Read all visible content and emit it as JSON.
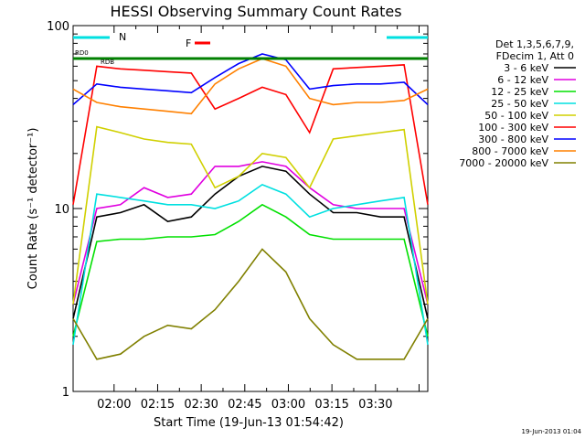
{
  "chart_data": {
    "type": "line",
    "title": "HESSI Observing Summary Count Rates",
    "xlabel": "Start Time (19-Jun-13 01:54:42)",
    "ylabel": "Count Rate (s⁻¹ detector⁻¹)",
    "yscale": "log",
    "ylim": [
      1,
      100
    ],
    "xlim_minutes": [
      -4.7,
      36.0
    ],
    "x_unit": "minutes after 02:00 UT",
    "x_ticks": [
      {
        "minute": 0,
        "label": "02:00"
      },
      {
        "minute": 15,
        "label": "02:15"
      },
      {
        "minute": 30,
        "label": "02:30"
      },
      {
        "minute": 45,
        "label": "02:45"
      },
      {
        "minute": 60,
        "label": "03:00"
      },
      {
        "minute": 75,
        "label": "03:15"
      },
      {
        "minute": 90,
        "label": "03:30"
      }
    ],
    "y_ticks": [
      {
        "value": 1,
        "label": "1"
      },
      {
        "value": 10,
        "label": "10"
      },
      {
        "value": 100,
        "label": "100"
      }
    ],
    "grid": false,
    "legend_position": "right",
    "legend_header": [
      "Det 1,3,5,6,7,9,",
      "FDecim 1, Att 0"
    ],
    "annotations": {
      "night_label": "N",
      "flare_label": "F",
      "rd0_label": "RD0",
      "rdb_label": "RDB"
    },
    "series": [
      {
        "name": "3 - 6 keV",
        "color": "#000000",
        "x": [
          0,
          5,
          10,
          15,
          20,
          25,
          30,
          35,
          40,
          45,
          50,
          55,
          60,
          65,
          70,
          75
        ],
        "y": [
          2.5,
          9,
          9.5,
          10.5,
          8.5,
          9,
          12,
          15,
          17,
          16,
          12,
          9.5,
          9.5,
          9,
          9,
          2.5
        ]
      },
      {
        "name": "6 - 12 keV",
        "color": "#e000e0",
        "x": [
          0,
          5,
          10,
          15,
          20,
          25,
          30,
          35,
          40,
          45,
          50,
          55,
          60,
          65,
          70,
          75
        ],
        "y": [
          3,
          10,
          10.5,
          13,
          11.5,
          12,
          17,
          17,
          18,
          17,
          13,
          10.5,
          10,
          10,
          10,
          3
        ]
      },
      {
        "name": "12 - 25 keV",
        "color": "#00e000",
        "x": [
          0,
          5,
          10,
          15,
          20,
          25,
          30,
          35,
          40,
          45,
          50,
          55,
          60,
          65,
          70,
          75
        ],
        "y": [
          2,
          6.6,
          6.8,
          6.8,
          7,
          7,
          7.2,
          8.5,
          10.5,
          9,
          7.2,
          6.8,
          6.8,
          6.8,
          6.8,
          2
        ]
      },
      {
        "name": "25 - 50 keV",
        "color": "#00e0e0",
        "x": [
          0,
          5,
          10,
          15,
          20,
          25,
          30,
          35,
          40,
          45,
          50,
          55,
          60,
          65,
          70,
          75
        ],
        "y": [
          1.8,
          12,
          11.5,
          11,
          10.5,
          10.5,
          10,
          11,
          13.5,
          12,
          9,
          10,
          10.5,
          11,
          11.5,
          1.8
        ]
      },
      {
        "name": "50 - 100 keV",
        "color": "#d0d000",
        "x": [
          0,
          5,
          10,
          15,
          20,
          25,
          30,
          35,
          40,
          45,
          50,
          55,
          60,
          65,
          70,
          75
        ],
        "y": [
          3,
          28,
          26,
          24,
          23,
          22.5,
          13,
          15,
          20,
          19,
          13,
          24,
          25,
          26,
          27,
          3
        ]
      },
      {
        "name": "100 - 300 keV",
        "color": "#ff0000",
        "x": [
          0,
          5,
          10,
          15,
          20,
          25,
          30,
          35,
          40,
          45,
          50,
          55,
          60,
          65,
          70,
          75
        ],
        "y": [
          10.5,
          60,
          58,
          57,
          56,
          55,
          35,
          40,
          46,
          42,
          26,
          58,
          59,
          60,
          61,
          10.5
        ]
      },
      {
        "name": "300 - 800 keV",
        "color": "#0000ff",
        "x": [
          0,
          5,
          10,
          15,
          20,
          25,
          30,
          35,
          40,
          45,
          50,
          55,
          60,
          65,
          70,
          75
        ],
        "y": [
          37,
          48,
          46,
          45,
          44,
          43,
          52,
          62,
          70,
          65,
          45,
          47,
          48,
          48,
          49,
          37
        ]
      },
      {
        "name": "800 - 7000 keV",
        "color": "#ff8000",
        "x": [
          0,
          5,
          10,
          15,
          20,
          25,
          30,
          35,
          40,
          45,
          50,
          55,
          60,
          65,
          70,
          75
        ],
        "y": [
          45,
          38,
          36,
          35,
          34,
          33,
          48,
          58,
          66,
          60,
          40,
          37,
          38,
          38,
          39,
          45
        ]
      },
      {
        "name": "7000 - 20000 keV",
        "color": "#808000",
        "x": [
          0,
          5,
          10,
          15,
          20,
          25,
          30,
          35,
          40,
          45,
          50,
          55,
          60,
          65,
          70,
          75
        ],
        "y": [
          2.5,
          1.5,
          1.6,
          2,
          2.3,
          2.2,
          2.8,
          4,
          6,
          4.5,
          2.5,
          1.8,
          1.5,
          1.5,
          1.5,
          2.5
        ]
      }
    ]
  },
  "footer": {
    "date_stamp": "19-Jun-2013 01:04"
  }
}
